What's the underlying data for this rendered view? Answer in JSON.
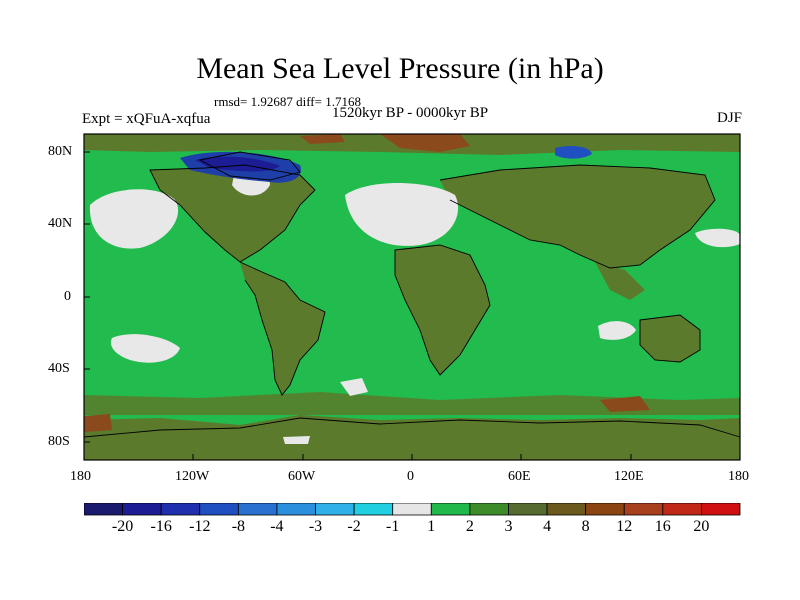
{
  "title": "Mean Sea Level Pressure (in hPa)",
  "stats": "rmsd= 1.92687 diff= 1.7168",
  "subtitle": "1520kyr BP - 0000kyr BP",
  "experiment": "Expt = xQFuA-xqfua",
  "season": "DJF",
  "lat_labels": [
    "80N",
    "40N",
    "0",
    "40S",
    "80S"
  ],
  "lon_labels": [
    "180",
    "120W",
    "60W",
    "0",
    "60E",
    "120E",
    "180"
  ],
  "colorbar": {
    "labels": [
      "-20",
      "-16",
      "-12",
      "-8",
      "-4",
      "-3",
      "-2",
      "-1",
      "1",
      "2",
      "3",
      "4",
      "8",
      "12",
      "16",
      "20"
    ],
    "colors": [
      "#1a1a6e",
      "#1c1c94",
      "#1f2fae",
      "#1f4fc0",
      "#2a70d0",
      "#2a90dd",
      "#30b0e8",
      "#20d0e0",
      "#e6e6e6",
      "#20b84a",
      "#3c8c2a",
      "#556b2f",
      "#6b5a1e",
      "#8b4513",
      "#a8401e",
      "#c02818",
      "#d01010"
    ]
  },
  "colors": {
    "ocean_green": "#22bb4e",
    "land_olive": "#5b7a2c",
    "near_zero": "#e8e8e8",
    "high_brown": "#8b4a1c",
    "low_blue": "#1f3fa8",
    "coast": "#000000"
  }
}
